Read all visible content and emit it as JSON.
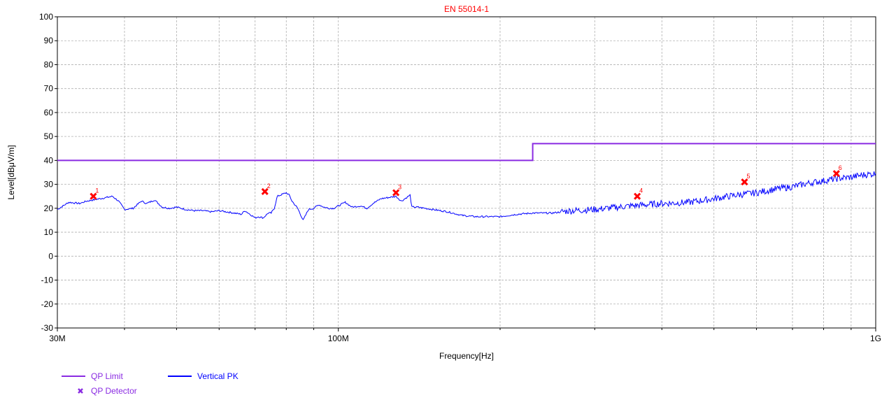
{
  "chart_data": {
    "type": "line",
    "title": "EN 55014-1",
    "xlabel": "Frequency[Hz]",
    "ylabel": "Level[dBμV/m]",
    "x_scale": "log",
    "xlim": [
      30000000,
      1000000000
    ],
    "ylim": [
      -30,
      100
    ],
    "grid": true,
    "x_major_ticks": [
      {
        "value": 30000000,
        "label": "30M"
      },
      {
        "value": 100000000,
        "label": "100M"
      },
      {
        "value": 1000000000,
        "label": "1G"
      }
    ],
    "x_minor_ticks": [
      40000000,
      50000000,
      60000000,
      70000000,
      80000000,
      90000000,
      200000000,
      300000000,
      400000000,
      500000000,
      600000000,
      700000000,
      800000000,
      900000000
    ],
    "y_ticks": [
      {
        "value": 100,
        "label": "100"
      },
      {
        "value": 90,
        "label": "90"
      },
      {
        "value": 80,
        "label": "80"
      },
      {
        "value": 70,
        "label": "70"
      },
      {
        "value": 60,
        "label": "60"
      },
      {
        "value": 50,
        "label": "50"
      },
      {
        "value": 40,
        "label": "40"
      },
      {
        "value": 30,
        "label": "30"
      },
      {
        "value": 20,
        "label": "20"
      },
      {
        "value": 10,
        "label": "10"
      },
      {
        "value": 0,
        "label": "0"
      },
      {
        "value": -10,
        "label": "-10"
      },
      {
        "value": -20,
        "label": "-20"
      },
      {
        "value": -30,
        "label": "-30"
      }
    ],
    "series": [
      {
        "name": "QP Limit",
        "color": "#8a2be2",
        "style": "step",
        "x": [
          30000000,
          230000000,
          230000000,
          1000000000
        ],
        "y": [
          40,
          40,
          47,
          47
        ]
      },
      {
        "name": "Vertical PK",
        "color": "#0000ff",
        "style": "line",
        "noisy_above": 260000000,
        "x": [
          30000000,
          31500000,
          33000000,
          34000000,
          35000000,
          36000000,
          37000000,
          38000000,
          39000000,
          40000000,
          41500000,
          43000000,
          44000000,
          45500000,
          47000000,
          48500000,
          50000000,
          52000000,
          54000000,
          56000000,
          58000000,
          60000000,
          62000000,
          64000000,
          66000000,
          67000000,
          68000000,
          70000000,
          71000000,
          72500000,
          74000000,
          75000000,
          76000000,
          77000000,
          78000000,
          80000000,
          81000000,
          82000000,
          84000000,
          86000000,
          88000000,
          90000000,
          92000000,
          94000000,
          96000000,
          98000000,
          100000000,
          103000000,
          106000000,
          110000000,
          113000000,
          116000000,
          120000000,
          124000000,
          128000000,
          131000000,
          134000000,
          136000000,
          137000000,
          140000000,
          145000000,
          150000000,
          160000000,
          170000000,
          180000000,
          190000000,
          200000000,
          215000000,
          230000000,
          250000000,
          270000000,
          300000000,
          350000000,
          400000000,
          450000000,
          500000000,
          550000000,
          600000000,
          650000000,
          700000000,
          750000000,
          800000000,
          850000000,
          900000000,
          950000000,
          1000000000
        ],
        "y": [
          19.5,
          22.5,
          22,
          23,
          23.5,
          24,
          24.5,
          25,
          23,
          19.5,
          20,
          23,
          22,
          23.5,
          20.5,
          20,
          20.5,
          19.5,
          19,
          19,
          18.5,
          19,
          18.5,
          18,
          17.5,
          19,
          18,
          16,
          16.5,
          16,
          18,
          18,
          20,
          25,
          25.5,
          26.5,
          25.5,
          23,
          20,
          15,
          19.5,
          20,
          21.5,
          20.5,
          20,
          20,
          21,
          22.5,
          20.5,
          21,
          20,
          22,
          24,
          24.5,
          25,
          23,
          24.5,
          25.5,
          20.5,
          20.5,
          20,
          19.5,
          18.5,
          17,
          16.5,
          16.5,
          16.5,
          17.5,
          18,
          18,
          19,
          19.5,
          21,
          22,
          22.5,
          24,
          25.5,
          26.5,
          28,
          29,
          30.5,
          31.5,
          32.5,
          33,
          34,
          34.5
        ]
      }
    ],
    "markers": {
      "name": "QP Detector",
      "color": "#ff0000",
      "points": [
        {
          "label": "1",
          "x": 35000000,
          "y": 25
        },
        {
          "label": "2",
          "x": 73000000,
          "y": 27
        },
        {
          "label": "3",
          "x": 128000000,
          "y": 26.5
        },
        {
          "label": "4",
          "x": 360000000,
          "y": 25
        },
        {
          "label": "5",
          "x": 570000000,
          "y": 31
        },
        {
          "label": "6",
          "x": 845000000,
          "y": 34.5
        }
      ]
    },
    "legend": [
      {
        "label": "QP Limit",
        "kind": "line",
        "color": "#8a2be2",
        "text_color": "#8a2be2"
      },
      {
        "label": "Vertical PK",
        "kind": "line",
        "color": "#0000ff",
        "text_color": "#0000ff"
      },
      {
        "label": "QP Detector",
        "kind": "marker",
        "color": "#8a2be2",
        "text_color": "#8a2be2"
      }
    ],
    "legend_placement": "bottom-left"
  }
}
